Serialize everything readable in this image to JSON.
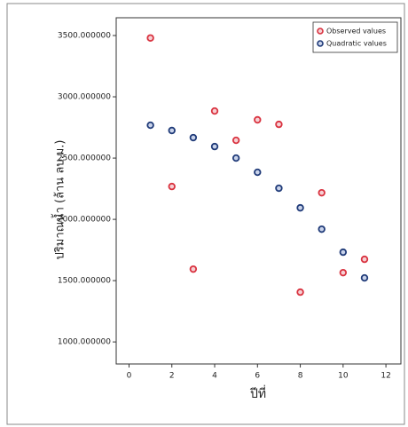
{
  "chart_data": {
    "type": "scatter",
    "x_label": "ปีที่",
    "y_label": "ปริมาณน้ำ (ล้าน ลบ.ม.)",
    "xlim": [
      -0.6,
      12.7
    ],
    "ylim": [
      820,
      3645
    ],
    "xticks": [
      0,
      2,
      4,
      6,
      8,
      10,
      12
    ],
    "yticks": [
      {
        "value": 1000,
        "label": "1000.000000"
      },
      {
        "value": 1500,
        "label": "1500.000000"
      },
      {
        "value": 2000,
        "label": "2000.000000"
      },
      {
        "value": 2500,
        "label": "2500.000000"
      },
      {
        "value": 3000,
        "label": "3000.000000"
      },
      {
        "value": 3500,
        "label": "3500.000000"
      }
    ],
    "legend_position": "upper right",
    "series": [
      {
        "name": "Observed values",
        "color": "#d9323f",
        "fill": "#f6d0d4",
        "x": [
          1,
          2,
          3,
          4,
          5,
          6,
          7,
          8,
          9,
          10,
          11
        ],
        "values": [
          3480,
          2268,
          1594,
          2884,
          2645,
          2812,
          2775,
          1406,
          2217,
          1565,
          1674
        ]
      },
      {
        "name": "Quadratic values",
        "color": "#1f3a78",
        "fill": "#c9d3ea",
        "x": [
          1,
          2,
          3,
          4,
          5,
          6,
          7,
          8,
          9,
          10,
          11
        ],
        "values": [
          2768,
          2725,
          2667,
          2594,
          2500,
          2384,
          2254,
          2094,
          1920,
          1732,
          1522
        ]
      }
    ]
  }
}
